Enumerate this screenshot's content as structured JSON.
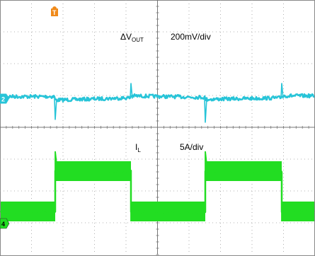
{
  "chart_data": {
    "type": "line",
    "grid": true,
    "divisions": {
      "x": 10,
      "y": 8
    },
    "trigger_marker": "T",
    "series": [
      {
        "name": "ΔV",
        "name_sub": "OUT",
        "scale": "200mV/div",
        "channel_label": "2",
        "color": "#27c4d8",
        "ground_div": 3.1,
        "values_div": [
          0.05,
          0.0,
          0.4,
          0.55,
          0.0,
          -0.4,
          0.05,
          0.0,
          0.45,
          0.55,
          0.0
        ],
        "description": "Output voltage ripple with spikes at every inductor current step"
      },
      {
        "name": "I",
        "name_sub": "L",
        "scale": "5A/div",
        "channel_label": "4",
        "color": "#22dd22",
        "ground_div": 0.0,
        "values_div": [
          0.0,
          2.9,
          0.0,
          2.9,
          0.0
        ],
        "description": "Inductor current square wave"
      }
    ]
  }
}
